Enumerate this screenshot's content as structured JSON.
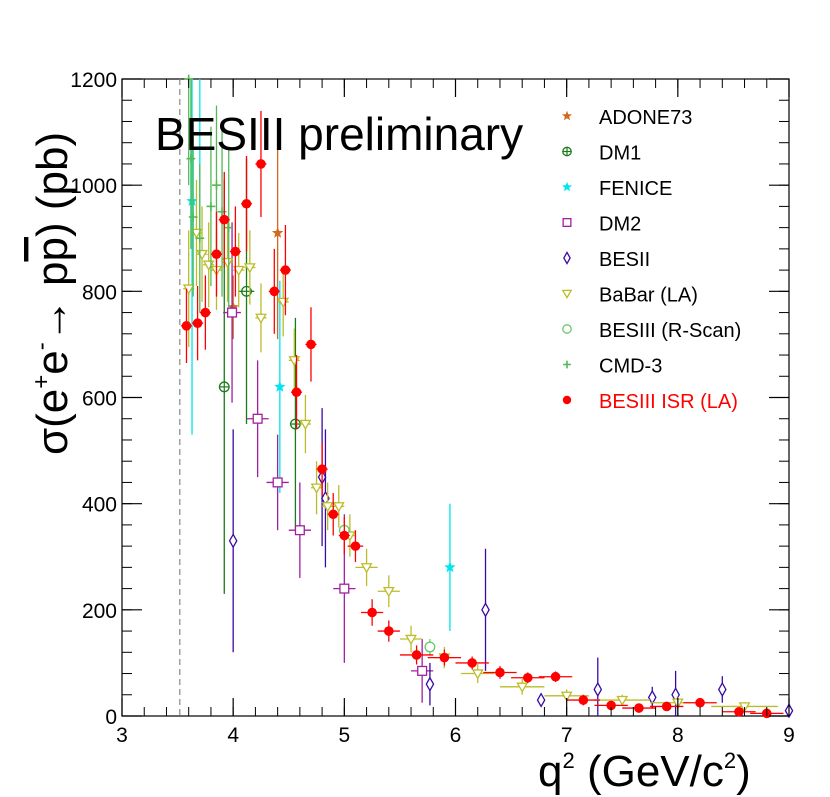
{
  "chart_data": {
    "type": "scatter",
    "title": "BESIII preliminary",
    "xlabel_main": "q",
    "xlabel_sup": "2",
    "xlabel_unit": " (GeV/c",
    "xlabel_unit_sup": "2",
    "xlabel_close": ")",
    "ylabel_prefix": "σ(e",
    "ylabel_plus": "+",
    "ylabel_e": "e",
    "ylabel_minus": "-",
    "ylabel_arrow": "→ p",
    "ylabel_pbar": "p",
    "ylabel_unit": ") (pb)",
    "xlim": [
      3,
      9
    ],
    "ylim": [
      0,
      1200
    ],
    "xticks": [
      "3",
      "4",
      "5",
      "6",
      "7",
      "8",
      "9"
    ],
    "yticks": [
      "0",
      "200",
      "400",
      "600",
      "800",
      "1000",
      "1200"
    ],
    "threshold_x": 3.52,
    "legend_position": "top-right",
    "series": [
      {
        "name": "ADONE73",
        "color": "#d2691e",
        "marker": "star",
        "points": [
          [
            4.0,
            770,
            60,
            0
          ],
          [
            4.4,
            910,
            200,
            0
          ]
        ]
      },
      {
        "name": "DM1",
        "color": "#1a7a1a",
        "marker": "circle-plus",
        "points": [
          [
            3.92,
            620,
            390,
            0
          ],
          [
            4.12,
            800,
            250,
            0.07
          ],
          [
            4.56,
            550,
            200,
            0.05
          ]
        ]
      },
      {
        "name": "FENICE",
        "color": "#00e5ee",
        "marker": "star",
        "points": [
          [
            3.63,
            970,
            440,
            0
          ],
          [
            3.7,
            1210,
            300,
            0
          ],
          [
            4.42,
            620,
            200,
            0
          ],
          [
            5.95,
            280,
            120,
            0
          ]
        ]
      },
      {
        "name": "DM2",
        "color": "#a020a0",
        "marker": "open-square",
        "points": [
          [
            3.99,
            760,
            170,
            0.08
          ],
          [
            4.22,
            560,
            110,
            0.1
          ],
          [
            4.4,
            440,
            90,
            0.1
          ],
          [
            4.6,
            350,
            90,
            0.1
          ],
          [
            5.0,
            240,
            140,
            0.1
          ],
          [
            5.7,
            85,
            60,
            0.1
          ]
        ]
      },
      {
        "name": "BESII",
        "color": "#3a0aa8",
        "marker": "open-diamond",
        "points": [
          [
            4.0,
            330,
            210,
            0
          ],
          [
            4.8,
            450,
            130,
            0.03
          ],
          [
            4.83,
            410,
            130,
            0
          ],
          [
            5.77,
            60,
            40,
            0
          ],
          [
            6.27,
            200,
            115,
            0
          ],
          [
            6.77,
            30,
            10,
            0
          ],
          [
            7.28,
            50,
            60,
            0
          ],
          [
            7.77,
            35,
            20,
            0
          ],
          [
            7.98,
            40,
            45,
            0
          ],
          [
            8.4,
            50,
            25,
            0
          ],
          [
            9.0,
            10,
            10,
            0
          ]
        ]
      },
      {
        "name": "BaBar (LA)",
        "color": "#bcbc2a",
        "marker": "open-triangle-down",
        "points": [
          [
            3.6,
            805,
            110,
            0.05
          ],
          [
            3.67,
            910,
            100,
            0.05
          ],
          [
            3.72,
            870,
            90,
            0.05
          ],
          [
            3.78,
            850,
            80,
            0.05
          ],
          [
            3.85,
            840,
            75,
            0.05
          ],
          [
            3.95,
            855,
            75,
            0.05
          ],
          [
            4.05,
            840,
            70,
            0.05
          ],
          [
            4.15,
            845,
            70,
            0.05
          ],
          [
            4.25,
            750,
            65,
            0.05
          ],
          [
            4.45,
            780,
            65,
            0.05
          ],
          [
            4.55,
            670,
            60,
            0.05
          ],
          [
            4.65,
            550,
            55,
            0.05
          ],
          [
            4.75,
            430,
            50,
            0.05
          ],
          [
            4.85,
            395,
            45,
            0.05
          ],
          [
            4.95,
            395,
            40,
            0.05
          ],
          [
            5.05,
            340,
            40,
            0.05
          ],
          [
            5.2,
            280,
            35,
            0.1
          ],
          [
            5.4,
            235,
            30,
            0.1
          ],
          [
            5.6,
            145,
            25,
            0.1
          ],
          [
            5.9,
            110,
            20,
            0.1
          ],
          [
            6.2,
            80,
            18,
            0.15
          ],
          [
            6.6,
            55,
            15,
            0.2
          ],
          [
            7.0,
            38,
            12,
            0.2
          ],
          [
            7.5,
            30,
            10,
            0.25
          ],
          [
            8.0,
            25,
            10,
            0.25
          ],
          [
            8.6,
            18,
            8,
            0.3
          ]
        ]
      },
      {
        "name": "BESIII (R-Scan)",
        "color": "#66cc66",
        "marker": "open-circle",
        "points": [
          [
            5.0,
            350,
            25,
            0
          ],
          [
            5.77,
            130,
            15,
            0
          ]
        ]
      },
      {
        "name": "CMD-3",
        "color": "#55b855",
        "marker": "plus",
        "points": [
          [
            3.6,
            1200,
            200,
            0
          ],
          [
            3.62,
            1050,
            170,
            0
          ],
          [
            3.64,
            940,
            150,
            0
          ],
          [
            3.7,
            900,
            140,
            0
          ],
          [
            3.8,
            960,
            150,
            0
          ],
          [
            3.85,
            1000,
            150,
            0
          ],
          [
            3.9,
            950,
            160,
            0
          ],
          [
            3.96,
            920,
            150,
            0
          ]
        ]
      },
      {
        "name": "BESIII ISR (LA)",
        "color": "#ff0000",
        "marker": "filled-circle",
        "points": [
          [
            3.58,
            735,
            70,
            0.05
          ],
          [
            3.68,
            740,
            70,
            0.05
          ],
          [
            3.75,
            760,
            70,
            0.05
          ],
          [
            3.85,
            870,
            80,
            0.05
          ],
          [
            3.92,
            935,
            90,
            0.05
          ],
          [
            4.02,
            875,
            85,
            0.05
          ],
          [
            4.12,
            965,
            90,
            0.05
          ],
          [
            4.25,
            1040,
            100,
            0.05
          ],
          [
            4.37,
            800,
            80,
            0.05
          ],
          [
            4.47,
            840,
            85,
            0.05
          ],
          [
            4.57,
            610,
            70,
            0.05
          ],
          [
            4.7,
            700,
            70,
            0.05
          ],
          [
            4.8,
            465,
            50,
            0.05
          ],
          [
            4.9,
            380,
            40,
            0.05
          ],
          [
            5.0,
            340,
            35,
            0.05
          ],
          [
            5.1,
            320,
            30,
            0.07
          ],
          [
            5.25,
            195,
            25,
            0.1
          ],
          [
            5.4,
            160,
            20,
            0.1
          ],
          [
            5.65,
            115,
            18,
            0.15
          ],
          [
            5.9,
            110,
            15,
            0.15
          ],
          [
            6.15,
            100,
            12,
            0.15
          ],
          [
            6.4,
            82,
            12,
            0.15
          ],
          [
            6.65,
            72,
            10,
            0.15
          ],
          [
            6.9,
            74,
            10,
            0.15
          ],
          [
            7.15,
            30,
            10,
            0.15
          ],
          [
            7.4,
            20,
            8,
            0.15
          ],
          [
            7.65,
            15,
            8,
            0.15
          ],
          [
            7.9,
            18,
            8,
            0.15
          ],
          [
            8.2,
            25,
            8,
            0.15
          ],
          [
            8.55,
            8,
            5,
            0.15
          ],
          [
            8.8,
            5,
            5,
            0.15
          ]
        ]
      }
    ]
  }
}
